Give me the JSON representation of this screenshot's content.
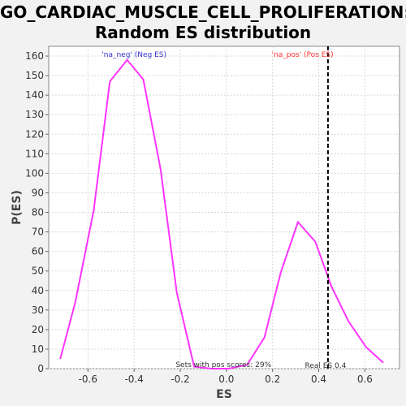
{
  "chart_data": {
    "type": "line",
    "title_line1": "GO_CARDIAC_MUSCLE_CELL_PROLIFERATION:",
    "title_line2": "Random ES distribution",
    "xlabel": "ES",
    "ylabel": "P(ES)",
    "xlim": [
      -0.77,
      0.75
    ],
    "ylim": [
      0,
      165
    ],
    "xticks": [
      -0.6,
      -0.4,
      -0.2,
      0.0,
      0.2,
      0.4,
      0.6
    ],
    "xtick_labels": [
      "-0.6",
      "-0.4",
      "-0.2",
      "0.0",
      "0.2",
      "0.4",
      "0.6"
    ],
    "yticks": [
      0,
      10,
      20,
      30,
      40,
      50,
      60,
      70,
      80,
      90,
      100,
      110,
      120,
      130,
      140,
      150,
      160
    ],
    "ytick_labels": [
      "0",
      "10",
      "20",
      "30",
      "40",
      "50",
      "60",
      "70",
      "80",
      "90",
      "100",
      "110",
      "120",
      "130",
      "140",
      "150",
      "160"
    ],
    "grid": true,
    "series": [
      {
        "color": "#ff33ff",
        "x": [
          -0.72,
          -0.655,
          -0.575,
          -0.505,
          -0.43,
          -0.36,
          -0.285,
          -0.215,
          -0.14,
          -0.065,
          0.01,
          0.09,
          0.165,
          0.235,
          0.31,
          0.385,
          0.455,
          0.53,
          0.605,
          0.68
        ],
        "y": [
          5,
          34,
          81,
          147,
          158,
          148,
          102,
          39,
          1,
          0,
          0,
          2,
          16,
          49,
          75,
          65,
          42,
          24,
          11,
          3
        ]
      }
    ],
    "real_es": 0.44,
    "annotations": {
      "neg_label": "'na_neg' (Neg ES)",
      "pos_label": "'na_pos' (Pos ES)",
      "sets_pos": "Sets with pos scores: 29%",
      "real_es_label": "Real ES 0.4"
    },
    "colors": {
      "neg": "#3333cc",
      "pos": "#ff3333",
      "line": "#ff33ff",
      "plot_bg": "#ffffff",
      "page_bg": "#f2f2f2"
    }
  }
}
